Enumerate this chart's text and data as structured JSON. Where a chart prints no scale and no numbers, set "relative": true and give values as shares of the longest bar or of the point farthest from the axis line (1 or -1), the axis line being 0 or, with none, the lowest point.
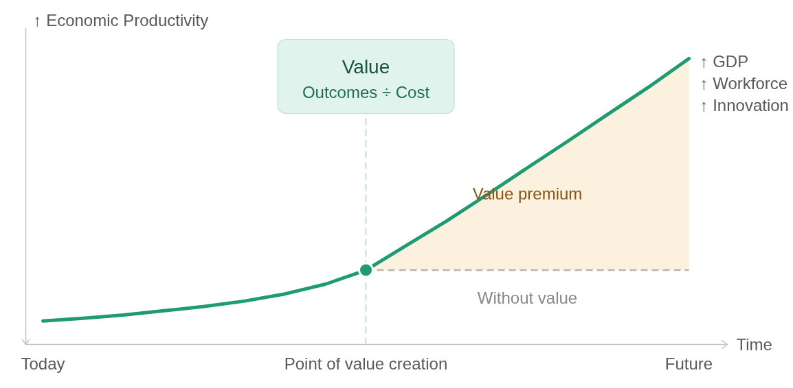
{
  "chart_data": {
    "type": "line",
    "relative": true,
    "tick_labels": "x",
    "ylabel": "↑ Economic Productivity",
    "xlabel": "Time",
    "categories": [
      "Today",
      null,
      null,
      null,
      null,
      null,
      null,
      null,
      "Point of value creation",
      null,
      null,
      null,
      null,
      null,
      null,
      null,
      "Future"
    ],
    "series": [
      {
        "name": "Without value",
        "color": "#b9b4ae",
        "line_style": "dashed",
        "values": [
          null,
          null,
          null,
          null,
          null,
          null,
          null,
          null,
          0.26,
          0.26,
          0.26,
          0.26,
          0.26,
          0.26,
          0.26,
          0.26,
          0.26
        ]
      },
      {
        "color": "#1e9b6f",
        "values": [
          0.082,
          0.092,
          0.103,
          0.118,
          0.133,
          0.152,
          0.177,
          0.211,
          0.26,
          0.346,
          0.432,
          0.524,
          0.618,
          0.711,
          0.806,
          0.9,
          1.0
        ],
        "lower": [
          null,
          null,
          null,
          null,
          null,
          null,
          null,
          null,
          0.26,
          0.26,
          0.26,
          0.26,
          0.26,
          0.26,
          0.26,
          0.26,
          0.26
        ],
        "upper": [
          null,
          null,
          null,
          null,
          null,
          null,
          null,
          null,
          0.26,
          0.346,
          0.432,
          0.524,
          0.618,
          0.711,
          0.806,
          0.9,
          1.0
        ]
      },
      {
        "type": "scatter",
        "color": "#1e9b6f",
        "marker": "circle",
        "x": [
          "Point of value creation"
        ],
        "values": [
          0.26
        ]
      }
    ],
    "ref_lines": [
      {
        "axis": "x",
        "value": "Point of value creation",
        "label": "Value\nOutcomes ÷ Cost",
        "color": "#b3cfc5",
        "line_style": "dashed"
      }
    ],
    "annotations": [
      "Value premium",
      "↑ GDP",
      "↑ Workforce",
      "↑ Innovation"
    ]
  }
}
